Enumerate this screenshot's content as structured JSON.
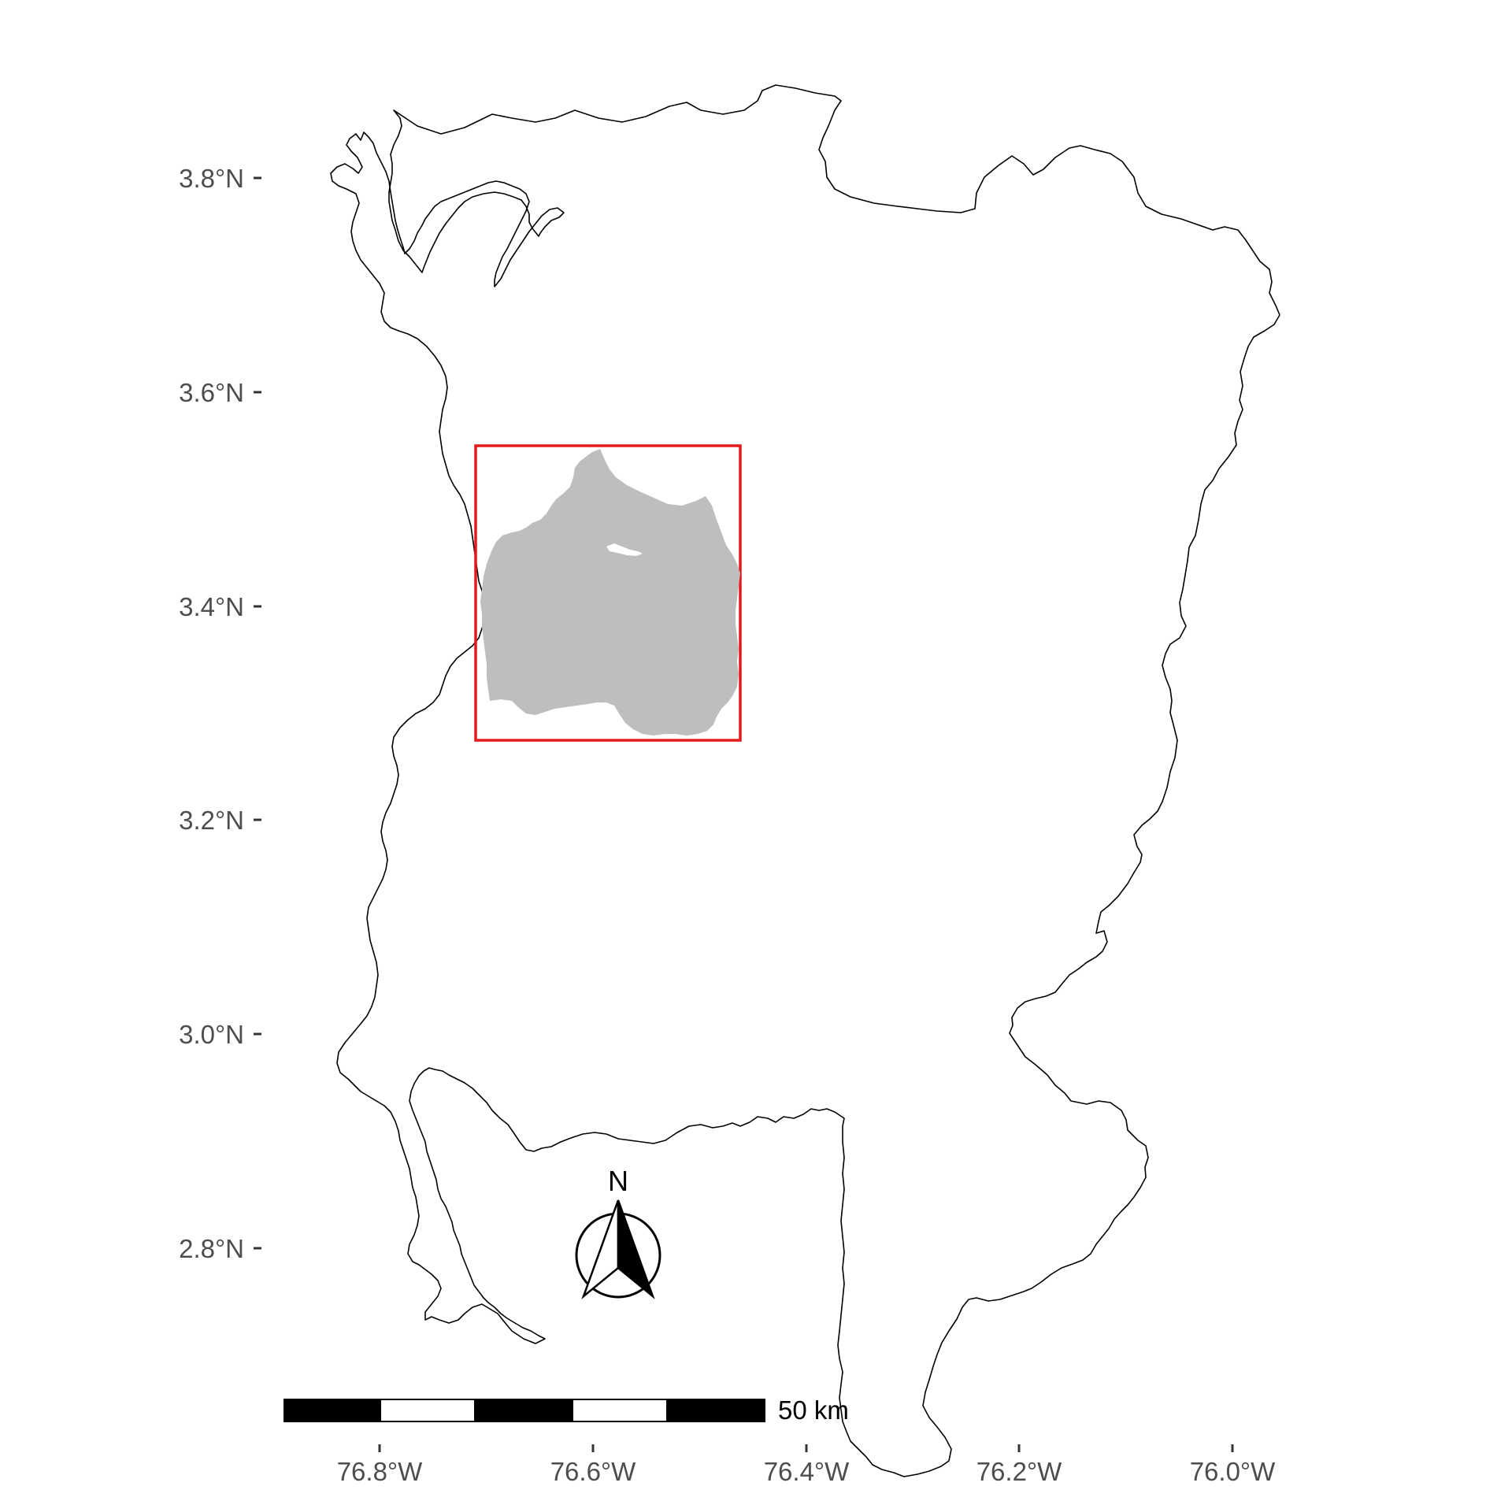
{
  "map": {
    "y_axis": {
      "ticks": [
        "3.8°N",
        "3.6°N",
        "3.4°N",
        "3.2°N",
        "3.0°N",
        "2.8°N"
      ]
    },
    "x_axis": {
      "ticks": [
        "76.8°W",
        "76.6°W",
        "76.4°W",
        "76.2°W",
        "76.0°W"
      ]
    },
    "scale_bar": {
      "label": "50 km",
      "segments": 5
    },
    "north_arrow": {
      "label": "N"
    },
    "colors": {
      "boundary": "#000000",
      "region_fill": "#bebebe",
      "highlight_box": "#e31a1c",
      "tick_label": "#4d4d4d"
    }
  }
}
